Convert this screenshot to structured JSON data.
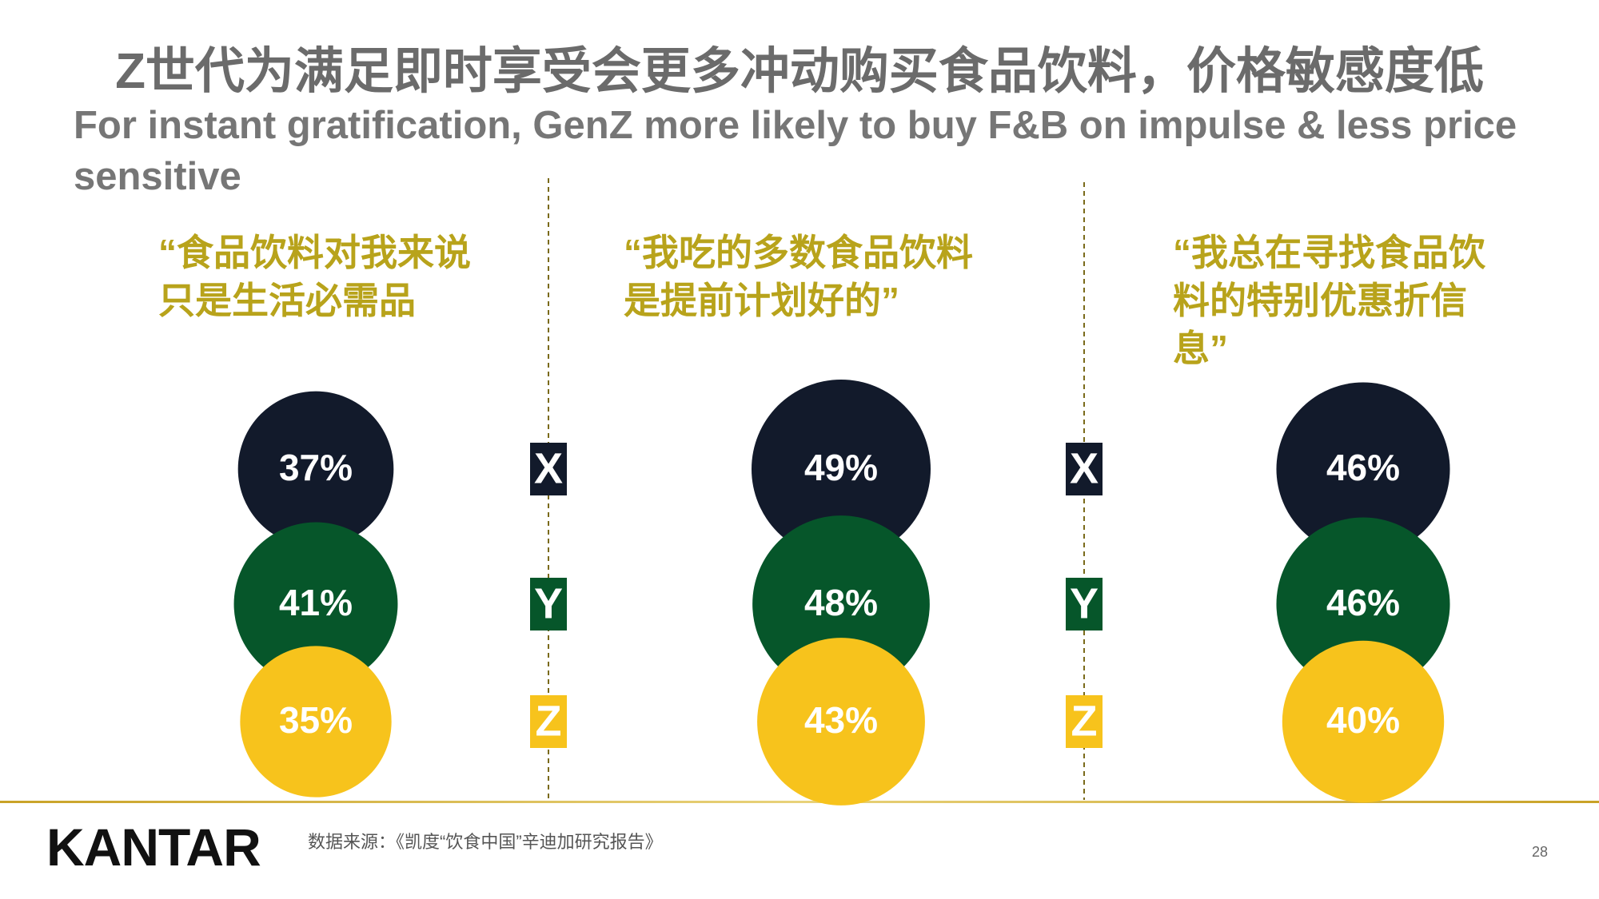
{
  "chart_data": {
    "type": "bubble",
    "title": "Z世代为满足即时享受会更多冲动购买食品饮料，价格敏感度低",
    "subtitle": "For instant gratification, GenZ more likely to buy F&B on impulse & less price sensitive",
    "categories": [
      "“食品饮料对我来说只是生活必需品",
      "“我吃的多数食品饮料是提前计划好的”",
      "“我总在寻找食品饮料的特别优惠折信息”"
    ],
    "series": [
      {
        "name": "X",
        "color": "#121a2b",
        "values": [
          37,
          49,
          46
        ],
        "value_labels": [
          "37%",
          "49%",
          "46%"
        ]
      },
      {
        "name": "Y",
        "color": "#06562a",
        "values": [
          41,
          48,
          46
        ],
        "value_labels": [
          "41%",
          "48%",
          "46%"
        ]
      },
      {
        "name": "Z",
        "color": "#f7c31c",
        "values": [
          35,
          43,
          40
        ],
        "value_labels": [
          "35%",
          "43%",
          "40%"
        ]
      }
    ]
  },
  "footer": {
    "logo": "KANTAR",
    "source": "数据来源：《凯度“饮食中国”辛迪加研究报告》",
    "page_number": "28"
  }
}
